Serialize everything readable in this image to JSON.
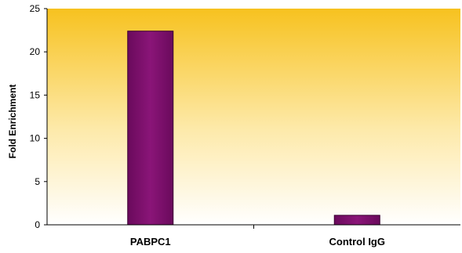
{
  "chart_data": {
    "type": "bar",
    "title": "",
    "xlabel": "",
    "ylabel": "Fold Enrichment",
    "categories": [
      "PABPC1",
      "Control IgG"
    ],
    "values": [
      22.4,
      1.1
    ],
    "ylim": [
      0,
      25
    ],
    "yticks": [
      0,
      5,
      10,
      15,
      20,
      25
    ],
    "grid": false,
    "legend": "none",
    "colors": {
      "bar_fill": "#7d0f6c",
      "bar_stroke": "#3a0032",
      "plot_bg_top": "#f7c21f",
      "plot_bg_bottom": "#ffffff"
    }
  }
}
